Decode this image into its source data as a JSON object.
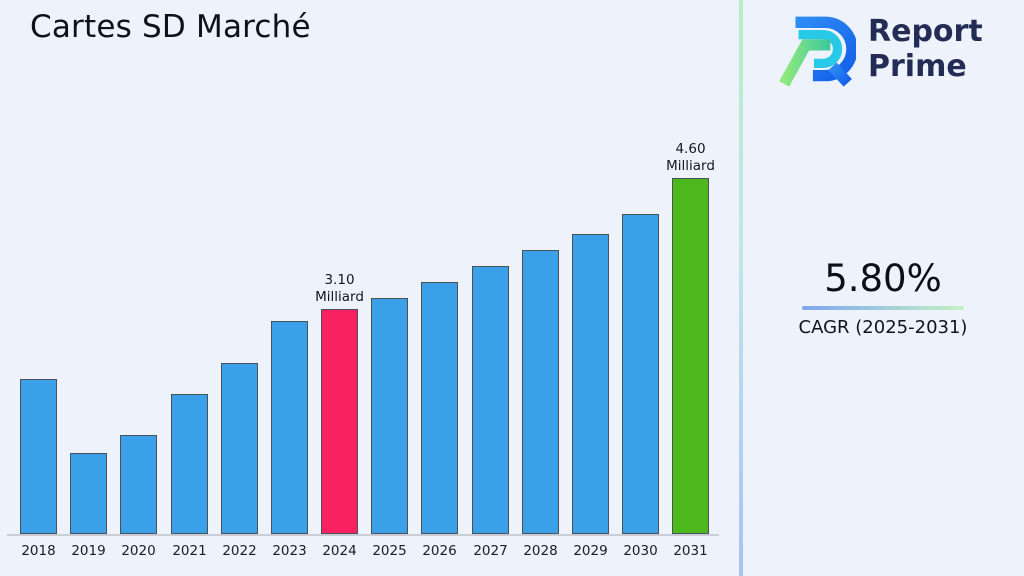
{
  "page": {
    "background": "#edf2fb"
  },
  "header": {
    "title": "Cartes SD Marché"
  },
  "logo": {
    "line1": "Report",
    "line2": "Prime",
    "text_color": "#232c54",
    "mark_colors": {
      "blue_light": "#2e8df5",
      "blue_dark": "#135fe8",
      "cyan": "#28c9e8",
      "green_light": "#8fe97d",
      "green_teal": "#3cc79e"
    }
  },
  "cagr": {
    "value": "5.80%",
    "label": "CAGR (2025-2031)",
    "underline_from": "#7ca7f0",
    "underline_to": "#c6f1c4"
  },
  "chart_data": {
    "type": "bar",
    "title": "Cartes SD Marché",
    "unit_label": "Milliard",
    "categories": [
      "2018",
      "2019",
      "2020",
      "2021",
      "2022",
      "2023",
      "2024",
      "2025",
      "2026",
      "2027",
      "2028",
      "2029",
      "2030",
      "2031"
    ],
    "values": [
      2.3,
      1.45,
      1.66,
      2.13,
      2.48,
      2.96,
      3.1,
      3.23,
      3.41,
      3.59,
      3.77,
      3.96,
      4.19,
      4.6
    ],
    "annotations": [
      {
        "category": "2024",
        "line1": "3.10",
        "line2": "Milliard"
      },
      {
        "category": "2031",
        "line1": "4.60",
        "line2": "Milliard"
      }
    ],
    "colors": {
      "default": "#3AA0E8",
      "2024": "#F9215F",
      "2031": "#4DB81C",
      "edge": "#49525C"
    },
    "xlabel": "",
    "ylabel": "",
    "grid": false,
    "legend": null
  }
}
